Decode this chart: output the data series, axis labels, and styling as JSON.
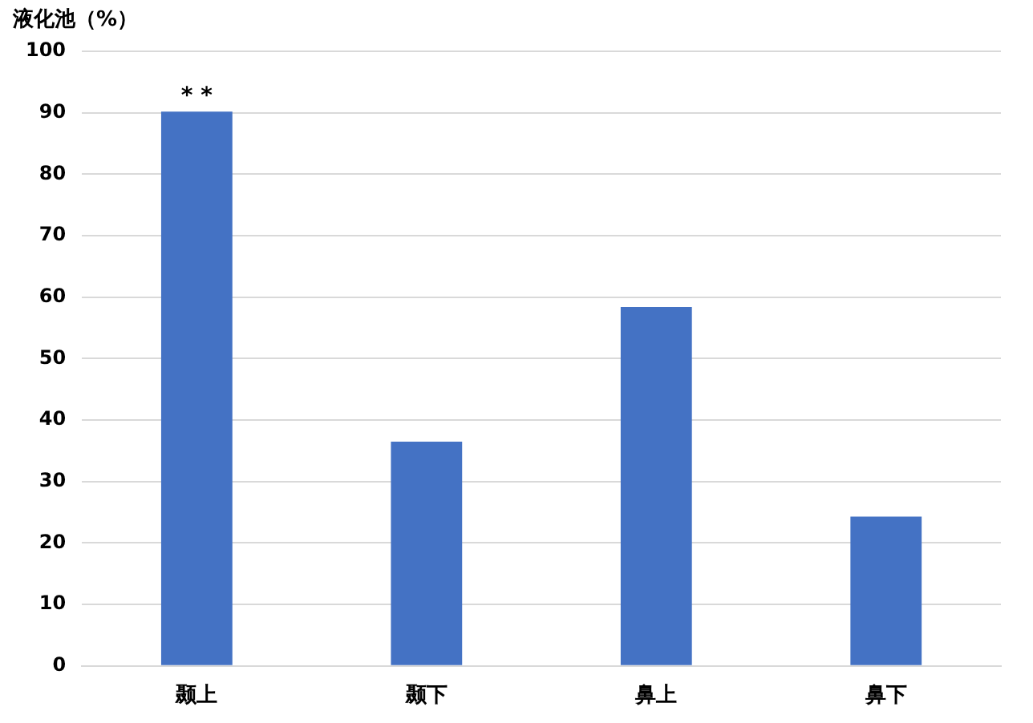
{
  "chart_data": {
    "type": "bar",
    "ylabel": "液化池（%）",
    "categories": [
      "颞上",
      "颞下",
      "鼻上",
      "鼻下"
    ],
    "values": [
      90.2,
      36.5,
      58.4,
      24.3
    ],
    "color": "#4472c4",
    "ylim": [
      0,
      100
    ],
    "yticks": [
      0,
      10,
      20,
      30,
      40,
      50,
      60,
      70,
      80,
      90,
      100
    ],
    "grid": "y",
    "annotations": [
      {
        "text": "* *",
        "x": "颞上",
        "y": 90.2
      }
    ]
  }
}
